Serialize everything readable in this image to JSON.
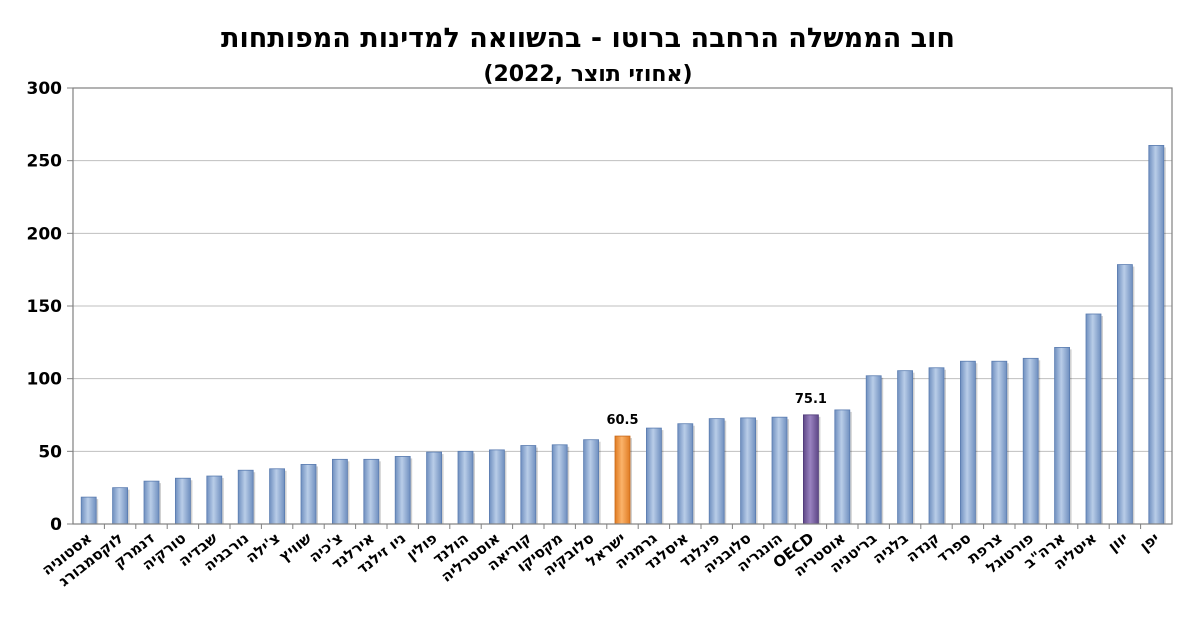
{
  "chart_data": {
    "type": "bar",
    "title": "חוב הממשלה הרחבה ברוטו - בהשוואה למדינות המפותחות",
    "subtitle": "(2022, אחוזי תוצר)",
    "categories": [
      "אסטוניה",
      "לוקסמבורג",
      "דנמרק",
      "טורקיה",
      "שבדיה",
      "נורבגיה",
      "צ'ילה",
      "שוויץ",
      "צ'כיה",
      "אירלנד",
      "ניו זילנד",
      "פולין",
      "הולנד",
      "אוסטרליה",
      "קוריאה",
      "מקסיקו",
      "סלובקיה",
      "ישראל",
      "גרמניה",
      "איסלנד",
      "פינלנד",
      "סלובניה",
      "הונגריה",
      "OECD",
      "אוסטריה",
      "בריטניה",
      "בלגיה",
      "קנדה",
      "ספרד",
      "צרפת",
      "פורטוגל",
      "ארה\"ב",
      "איטליה",
      "יוון",
      "יפן"
    ],
    "values": [
      18.5,
      25,
      29.5,
      31.5,
      33,
      37,
      38,
      41,
      44.5,
      44.5,
      46.5,
      49.5,
      50,
      51,
      54,
      54.5,
      58,
      60.5,
      66,
      69,
      72.5,
      73,
      73.5,
      75.1,
      78.5,
      102,
      105.5,
      107.5,
      112,
      112,
      114,
      121.5,
      144.5,
      178.5,
      260.5
    ],
    "highlights": {
      "ישראל": "#f79646",
      "OECD": "#8064a2"
    },
    "data_labels": [
      {
        "category": "ישראל",
        "text": "60.5"
      },
      {
        "category": "OECD",
        "text": "75.1"
      }
    ],
    "bar_color": "#95b3d7",
    "ylim": [
      0,
      300
    ],
    "yticks": [
      "0",
      "50",
      "100",
      "150",
      "200",
      "250",
      "300"
    ],
    "grid": true,
    "legend": "none"
  }
}
